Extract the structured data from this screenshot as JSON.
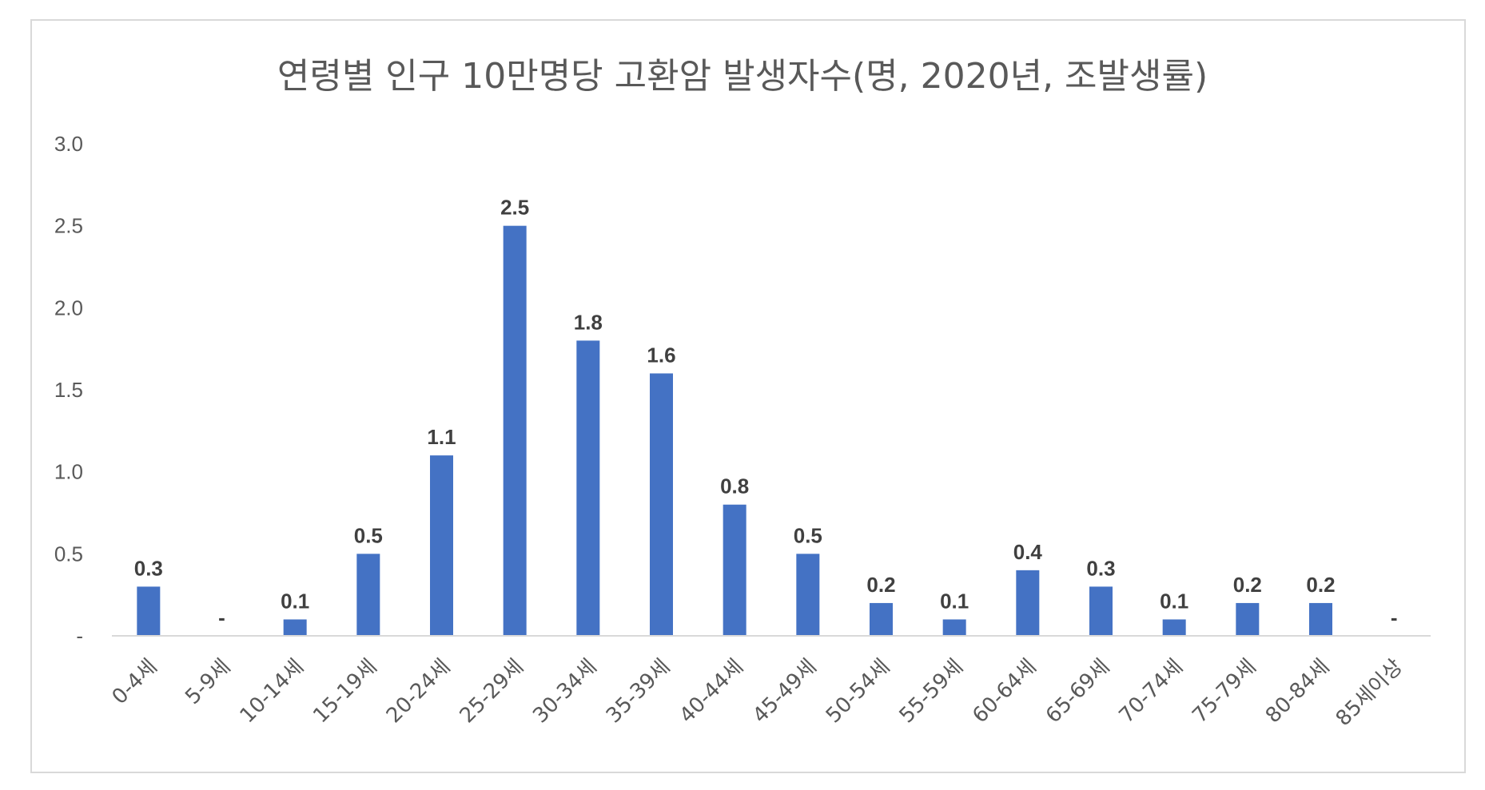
{
  "chart_data": {
    "type": "bar",
    "title": "연령별 인구 10만명당 고환암 발생자수(명, 2020년, 조발생률)",
    "xlabel": "",
    "ylabel": "",
    "categories": [
      "0-4세",
      "5-9세",
      "10-14세",
      "15-19세",
      "20-24세",
      "25-29세",
      "30-34세",
      "35-39세",
      "40-44세",
      "45-49세",
      "50-54세",
      "55-59세",
      "60-64세",
      "65-69세",
      "70-74세",
      "75-79세",
      "80-84세",
      "85세이상"
    ],
    "values": [
      0.3,
      0,
      0.1,
      0.5,
      1.1,
      2.5,
      1.8,
      1.6,
      0.8,
      0.5,
      0.2,
      0.1,
      0.4,
      0.3,
      0.1,
      0.2,
      0.2,
      0
    ],
    "data_labels": [
      "0.3",
      "-",
      "0.1",
      "0.5",
      "1.1",
      "2.5",
      "1.8",
      "1.6",
      "0.8",
      "0.5",
      "0.2",
      "0.1",
      "0.4",
      "0.3",
      "0.1",
      "0.2",
      "0.2",
      "-"
    ],
    "ylim": [
      0,
      3.0
    ],
    "yticks": [
      0,
      0.5,
      1.0,
      1.5,
      2.0,
      2.5,
      3.0
    ],
    "ytick_labels": [
      "-",
      "0.5",
      "1.0",
      "1.5",
      "2.0",
      "2.5",
      "3.0"
    ],
    "grid": false,
    "legend": "none",
    "colors": {
      "bar": "#4472C4",
      "axis": "#d9d9d9",
      "text": "#595959",
      "label": "#404040"
    }
  }
}
